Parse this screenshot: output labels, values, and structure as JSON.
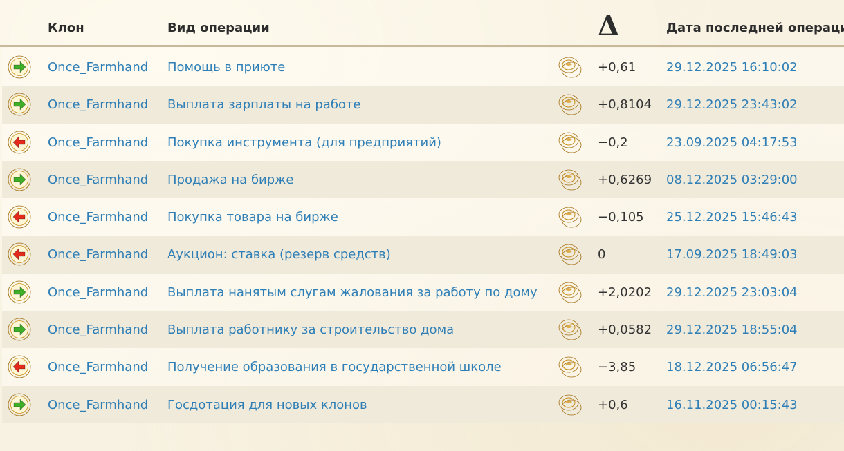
{
  "header": {
    "clone": "Клон",
    "operation": "Вид операции",
    "delta": "Δ",
    "date": "Дата последней операции"
  },
  "colors": {
    "link": "#2f7fb6",
    "income_arrow": "#3fae28",
    "expense_arrow": "#e32b1c",
    "icon_ring": "#e6a817",
    "coin": "#e8b23a"
  },
  "rows": [
    {
      "direction": "income",
      "icon": "arrow-right-icon",
      "clone": "Once_Farmhand",
      "operation": "Помощь в приюте",
      "currency_icon": "gold-coins-icon",
      "amount": "+0,61",
      "date": "29.12.2025 16:10:02"
    },
    {
      "direction": "income",
      "icon": "arrow-right-icon",
      "clone": "Once_Farmhand",
      "operation": "Выплата зарплаты на работе",
      "currency_icon": "gold-coins-icon",
      "amount": "+0,8104",
      "date": "29.12.2025 23:43:02"
    },
    {
      "direction": "expense",
      "icon": "arrow-left-icon",
      "clone": "Once_Farmhand",
      "operation": "Покупка инструмента (для предприятий)",
      "currency_icon": "gold-coins-icon",
      "amount": "−0,2",
      "date": "23.09.2025 04:17:53"
    },
    {
      "direction": "income",
      "icon": "arrow-right-icon",
      "clone": "Once_Farmhand",
      "operation": "Продажа на бирже",
      "currency_icon": "gold-coins-icon",
      "amount": "+0,6269",
      "date": "08.12.2025 03:29:00"
    },
    {
      "direction": "expense",
      "icon": "arrow-left-icon",
      "clone": "Once_Farmhand",
      "operation": "Покупка товара на бирже",
      "currency_icon": "gold-coins-icon",
      "amount": "−0,105",
      "date": "25.12.2025 15:46:43"
    },
    {
      "direction": "expense",
      "icon": "arrow-left-icon",
      "clone": "Once_Farmhand",
      "operation": "Аукцион: ставка (резерв средств)",
      "currency_icon": "gold-coins-icon",
      "amount": "0",
      "date": "17.09.2025 18:49:03"
    },
    {
      "direction": "income",
      "icon": "arrow-right-icon",
      "clone": "Once_Farmhand",
      "operation": "Выплата нанятым слугам жалования за работу по дому",
      "currency_icon": "gold-coins-icon",
      "amount": "+2,0202",
      "date": "29.12.2025 23:03:04"
    },
    {
      "direction": "income",
      "icon": "arrow-right-icon",
      "clone": "Once_Farmhand",
      "operation": "Выплата работнику за строительство дома",
      "currency_icon": "gold-coins-icon",
      "amount": "+0,0582",
      "date": "29.12.2025 18:55:04"
    },
    {
      "direction": "expense",
      "icon": "arrow-left-icon",
      "clone": "Once_Farmhand",
      "operation": "Получение образования в государственной школе",
      "currency_icon": "gold-coins-icon",
      "amount": "−3,85",
      "date": "18.12.2025 06:56:47"
    },
    {
      "direction": "income",
      "icon": "arrow-right-icon",
      "clone": "Once_Farmhand",
      "operation": "Госдотация для новых клонов",
      "currency_icon": "gold-coins-icon",
      "amount": "+0,6",
      "date": "16.11.2025 00:15:43"
    }
  ]
}
